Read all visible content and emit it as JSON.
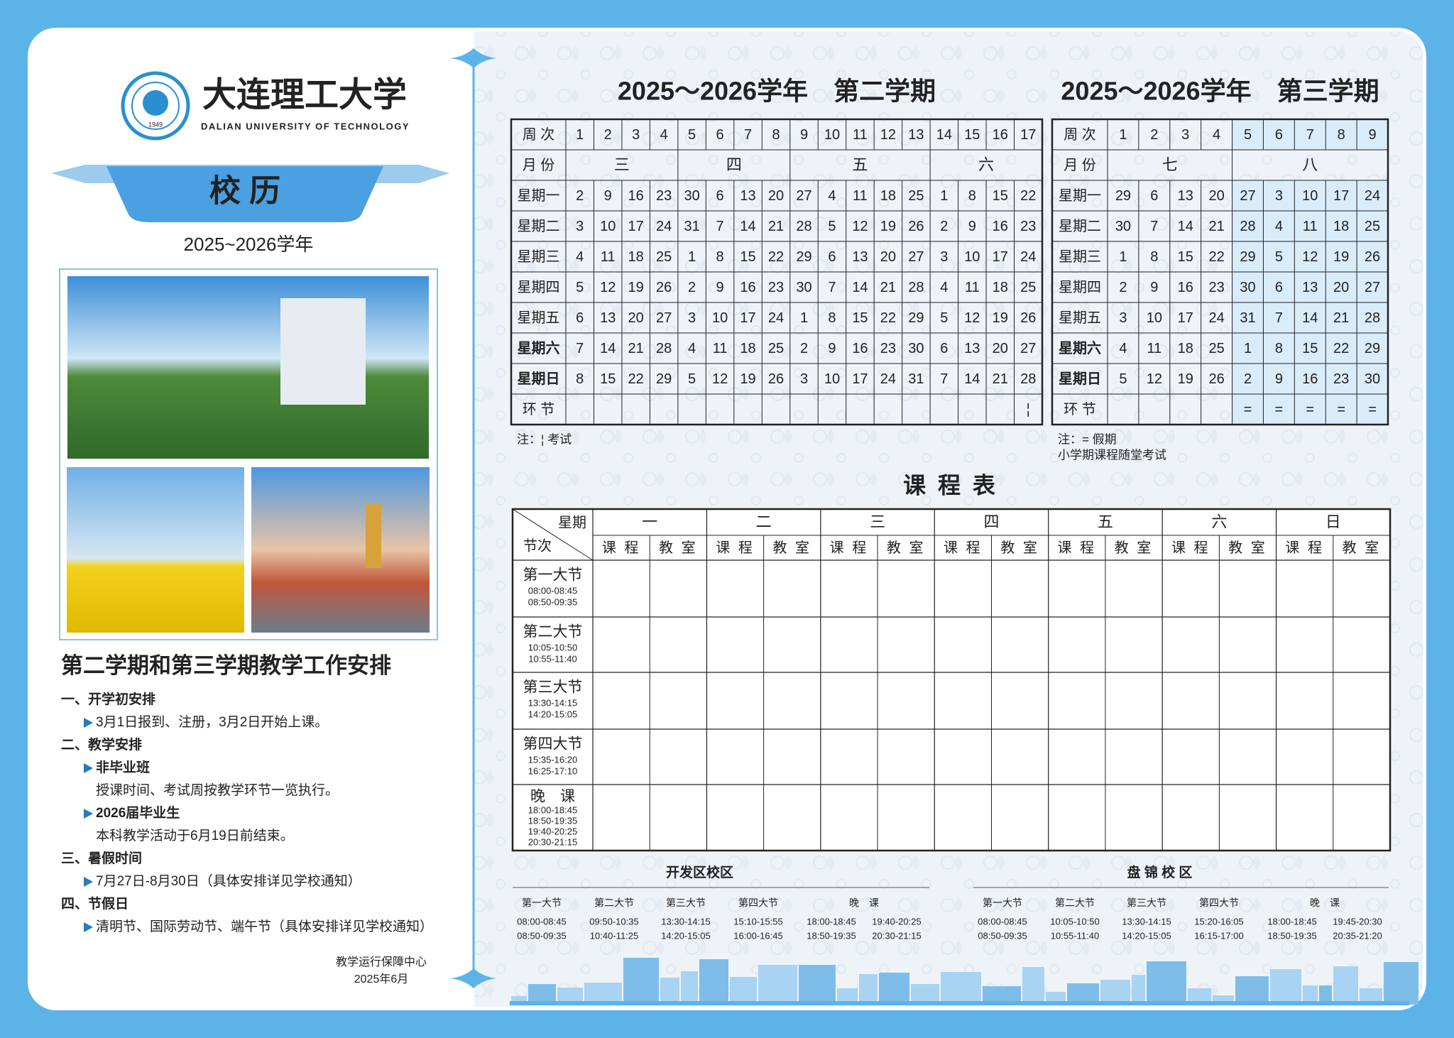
{
  "header": {
    "university_name": "大连理工大学",
    "university_name_en": "DALIAN UNIVERSITY OF TECHNOLOGY",
    "logo_year": "1949",
    "title": "校 历",
    "academic_year": "2025~2026学年"
  },
  "arrangement": {
    "title": "第二学期和第三学期教学工作安排",
    "sections": [
      {
        "heading": "一、开学初安排",
        "items": [
          {
            "text": "3月1日报到、注册，3月2日开始上课。",
            "style": "bullet"
          }
        ]
      },
      {
        "heading": "二、教学安排",
        "items": [
          {
            "text": "非毕业班",
            "style": "subheading"
          },
          {
            "text": "授课时间、考试周按教学环节一览执行。",
            "style": "text"
          },
          {
            "text": "2026届毕业生",
            "style": "subheading"
          },
          {
            "text": "本科教学活动于6月19日前结束。",
            "style": "text"
          }
        ]
      },
      {
        "heading": "三、暑假时间",
        "items": [
          {
            "text": "7月27日-8月30日（具体安排详见学校通知）",
            "style": "bullet"
          }
        ]
      },
      {
        "heading": "四、节假日",
        "items": [
          {
            "text": "清明节、国际劳动节、端午节（具体安排详见学校通知）",
            "style": "bullet"
          }
        ]
      }
    ]
  },
  "footer": {
    "office": "教学运行保障中心",
    "date": "2025年6月"
  },
  "calendars": [
    {
      "title": "2025～2026学年　第二学期",
      "week_label": "周 次",
      "weeks": [
        1,
        2,
        3,
        4,
        5,
        6,
        7,
        8,
        9,
        10,
        11,
        12,
        13,
        14,
        15,
        16,
        17
      ],
      "month_label": "月 份",
      "months": [
        "三",
        null,
        null,
        null,
        "四",
        null,
        null,
        null,
        "五",
        null,
        null,
        null,
        null,
        "六",
        null,
        null,
        null
      ],
      "days": [
        {
          "label": "星期一",
          "dates": [
            2,
            9,
            16,
            23,
            30,
            6,
            13,
            20,
            27,
            4,
            11,
            18,
            25,
            1,
            8,
            15,
            22
          ]
        },
        {
          "label": "星期二",
          "dates": [
            3,
            10,
            17,
            24,
            31,
            7,
            14,
            21,
            28,
            5,
            12,
            19,
            26,
            2,
            9,
            16,
            23
          ]
        },
        {
          "label": "星期三",
          "dates": [
            4,
            11,
            18,
            25,
            1,
            8,
            15,
            22,
            29,
            6,
            13,
            20,
            27,
            3,
            10,
            17,
            24
          ]
        },
        {
          "label": "星期四",
          "dates": [
            5,
            12,
            19,
            26,
            2,
            9,
            16,
            23,
            30,
            7,
            14,
            21,
            28,
            4,
            11,
            18,
            25
          ]
        },
        {
          "label": "星期五",
          "dates": [
            6,
            13,
            20,
            27,
            3,
            10,
            17,
            24,
            1,
            8,
            15,
            22,
            29,
            5,
            12,
            19,
            26
          ]
        },
        {
          "label": "星期六",
          "color": "#d9262c",
          "dates": [
            7,
            14,
            21,
            28,
            4,
            11,
            18,
            25,
            2,
            9,
            16,
            23,
            30,
            6,
            13,
            20,
            27
          ]
        },
        {
          "label": "星期日",
          "color": "#d9262c",
          "dates": [
            8,
            15,
            22,
            29,
            5,
            12,
            19,
            26,
            3,
            10,
            17,
            24,
            31,
            7,
            14,
            21,
            28
          ]
        }
      ],
      "holidays": [
        {
          "day": "星期五",
          "week": 9,
          "color": "#d9262c"
        },
        {
          "day": "星期五",
          "week": 16,
          "color": "#d9262c"
        }
      ],
      "session_label": "环 节",
      "sessions": [
        null,
        null,
        null,
        null,
        null,
        null,
        null,
        null,
        null,
        null,
        null,
        null,
        null,
        null,
        null,
        null,
        "¦"
      ],
      "notes": [
        "注：¦ 考试"
      ]
    },
    {
      "title": "2025～2026学年　第三学期",
      "week_label": "周 次",
      "weeks": [
        1,
        2,
        3,
        4,
        5,
        6,
        7,
        8,
        9
      ],
      "month_label": "月 份",
      "months": [
        "七",
        null,
        null,
        null,
        "八",
        null,
        null,
        null,
        null
      ],
      "days": [
        {
          "label": "星期一",
          "dates": [
            29,
            6,
            13,
            20,
            27,
            3,
            10,
            17,
            24
          ]
        },
        {
          "label": "星期二",
          "dates": [
            30,
            7,
            14,
            21,
            28,
            4,
            11,
            18,
            25
          ]
        },
        {
          "label": "星期三",
          "dates": [
            1,
            8,
            15,
            22,
            29,
            5,
            12,
            19,
            26
          ]
        },
        {
          "label": "星期四",
          "dates": [
            2,
            9,
            16,
            23,
            30,
            6,
            13,
            20,
            27
          ]
        },
        {
          "label": "星期五",
          "dates": [
            3,
            10,
            17,
            24,
            31,
            7,
            14,
            21,
            28
          ]
        },
        {
          "label": "星期六",
          "color": "#d9262c",
          "dates": [
            4,
            11,
            18,
            25,
            1,
            8,
            15,
            22,
            29
          ]
        },
        {
          "label": "星期日",
          "color": "#d9262c",
          "dates": [
            5,
            12,
            19,
            26,
            2,
            9,
            16,
            23,
            30
          ]
        }
      ],
      "session_label": "环 节",
      "sessions": [
        null,
        null,
        null,
        null,
        "=",
        "=",
        "=",
        "=",
        "="
      ],
      "vacation_color": "#d9ecf9",
      "notes": [
        "注：= 假期",
        "小学期课程随堂考试"
      ]
    }
  ],
  "timetable": {
    "title": "课 程 表",
    "corner_top": "星期",
    "corner_bottom": "节次",
    "days": [
      "一",
      "二",
      "三",
      "四",
      "五",
      "六",
      "日"
    ],
    "course_label": "课 程",
    "room_label": "教 室",
    "periods": [
      {
        "name": "第一大节",
        "times": [
          "08:00-08:45",
          "08:50-09:35"
        ]
      },
      {
        "name": "第二大节",
        "times": [
          "10:05-10:50",
          "10:55-11:40"
        ]
      },
      {
        "name": "第三大节",
        "times": [
          "13:30-14:15",
          "14:20-15:05"
        ]
      },
      {
        "name": "第四大节",
        "times": [
          "15:35-16:20",
          "16:25-17:10"
        ]
      },
      {
        "name": "晚　课",
        "times": [
          "18:00-18:45",
          "18:50-19:35",
          "19:40-20:25",
          "20:30-21:15"
        ]
      }
    ]
  },
  "campuses": [
    {
      "name": "开发区校区",
      "periods": [
        {
          "name": "第一大节",
          "times": [
            "08:00-08:45",
            "08:50-09:35"
          ]
        },
        {
          "name": "第二大节",
          "times": [
            "09:50-10:35",
            "10:40-11:25"
          ]
        },
        {
          "name": "第三大节",
          "times": [
            "13:30-14:15",
            "14:20-15:05"
          ]
        },
        {
          "name": "第四大节",
          "times": [
            "15:10-15:55",
            "16:00-16:45"
          ]
        },
        {
          "name": "晚　课",
          "times": [
            "18:00-18:45",
            "18:50-19:35",
            "19:40-20:25",
            "20:30-21:15"
          ]
        }
      ]
    },
    {
      "name": "盘 锦 校 区",
      "periods": [
        {
          "name": "第一大节",
          "times": [
            "08:00-08:45",
            "08:50-09:35"
          ]
        },
        {
          "name": "第二大节",
          "times": [
            "10:05-10:50",
            "10:55-11:40"
          ]
        },
        {
          "name": "第三大节",
          "times": [
            "13:30-14:15",
            "14:20-15:05"
          ]
        },
        {
          "name": "第四大节",
          "times": [
            "15:20-16:05",
            "16:15-17:00"
          ]
        },
        {
          "name": "晚　课",
          "times": [
            "18:00-18:45",
            "18:50-19:35",
            "19:45-20:30",
            "20:35-21:20"
          ]
        }
      ]
    }
  ]
}
